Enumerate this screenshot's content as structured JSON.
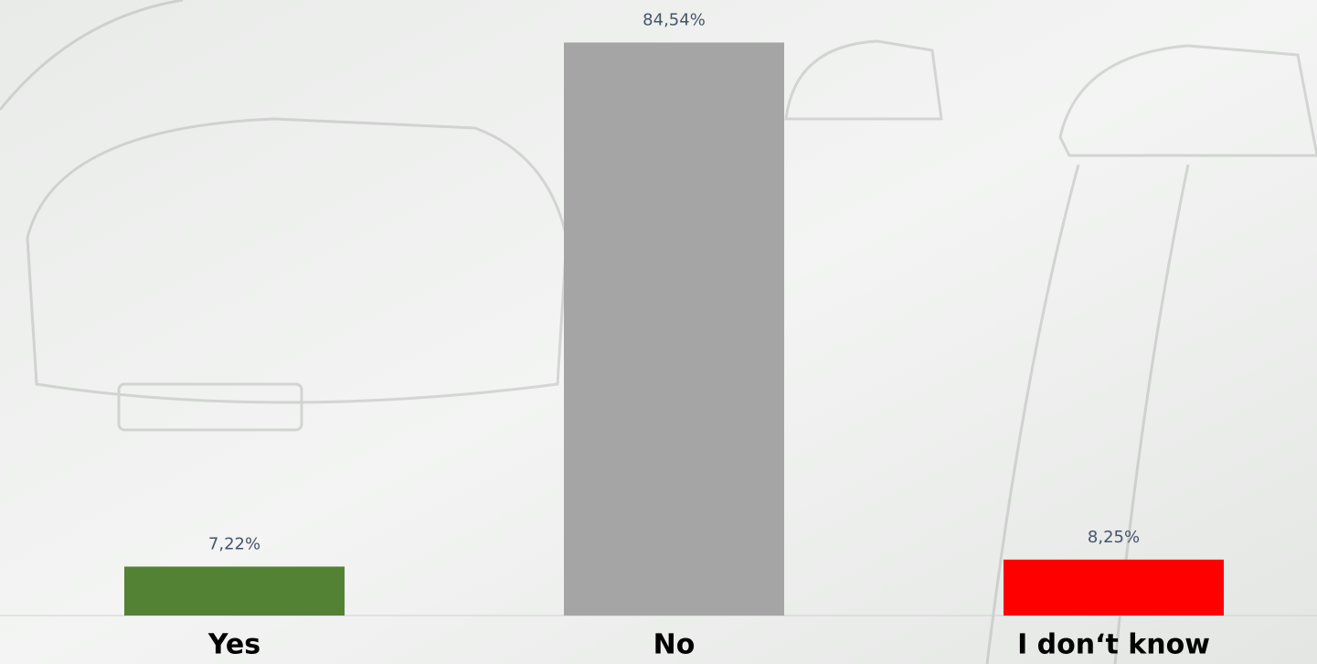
{
  "chart_data": {
    "type": "bar",
    "categories": [
      "Yes",
      "No",
      "I don‘t know"
    ],
    "values": [
      7.22,
      84.54,
      8.25
    ],
    "value_labels": [
      "7,22%",
      "84,54%",
      "8,25%"
    ],
    "colors": [
      "#548235",
      "#a5a5a5",
      "#ff0000"
    ],
    "ylim": [
      0,
      90
    ]
  }
}
